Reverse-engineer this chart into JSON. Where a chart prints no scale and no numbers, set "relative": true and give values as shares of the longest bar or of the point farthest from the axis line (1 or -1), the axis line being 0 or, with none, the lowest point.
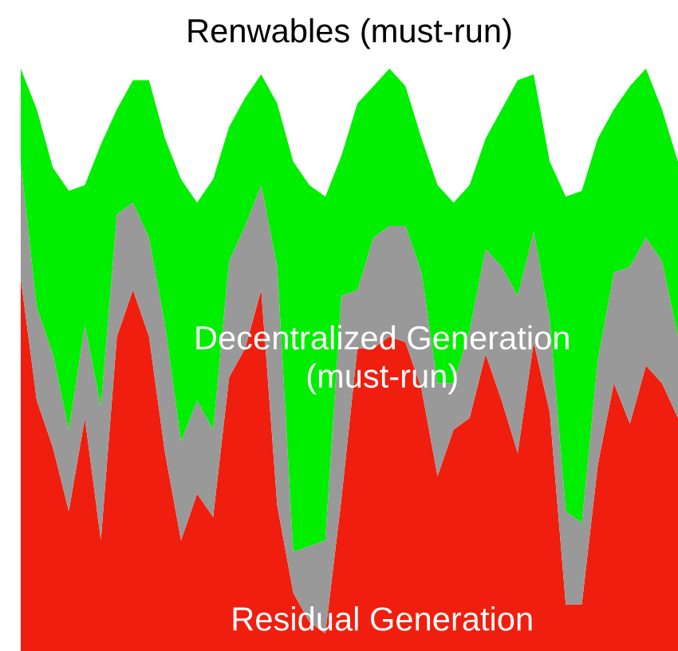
{
  "chart_data": {
    "type": "area",
    "stacked": true,
    "relative": true,
    "legend": false,
    "categories": [
      null,
      null,
      null,
      null,
      null,
      null,
      null,
      null,
      null,
      null,
      null,
      null,
      null,
      null,
      null,
      null,
      null,
      null,
      null,
      null,
      null,
      null,
      null,
      null,
      null,
      null,
      null,
      null,
      null,
      null,
      null,
      null,
      null,
      null,
      null,
      null,
      null,
      null,
      null,
      null,
      null,
      null
    ],
    "series": [
      {
        "name": "Residual Generation",
        "color": "#f01e0e",
        "values": [
          0.64,
          0.43,
          0.35,
          0.24,
          0.4,
          0.19,
          0.54,
          0.62,
          0.54,
          0.34,
          0.19,
          0.27,
          0.23,
          0.47,
          0.52,
          0.62,
          0.25,
          0.1,
          0.05,
          0.03,
          0.26,
          0.52,
          0.52,
          0.54,
          0.53,
          0.45,
          0.3,
          0.38,
          0.4,
          0.51,
          0.43,
          0.34,
          0.53,
          0.41,
          0.08,
          0.08,
          0.32,
          0.46,
          0.39,
          0.49,
          0.46,
          0.4
        ]
      },
      {
        "name": "Decentralized Generation\n(must-run)",
        "color": "#999999",
        "values": [
          0.2,
          0.16,
          0.16,
          0.14,
          0.16,
          0.23,
          0.21,
          0.15,
          0.17,
          0.22,
          0.17,
          0.16,
          0.15,
          0.2,
          0.21,
          0.18,
          0.41,
          0.07,
          0.13,
          0.16,
          0.35,
          0.1,
          0.19,
          0.19,
          0.2,
          0.2,
          0.16,
          0.08,
          0.15,
          0.18,
          0.23,
          0.27,
          0.19,
          0.16,
          0.16,
          0.14,
          0.18,
          0.19,
          0.27,
          0.22,
          0.21,
          0.14
        ]
      },
      {
        "name": "Renwables (must-run)",
        "color": "#00ee00",
        "values": [
          0.16,
          0.34,
          0.32,
          0.41,
          0.24,
          0.45,
          0.18,
          0.21,
          0.27,
          0.32,
          0.45,
          0.34,
          0.43,
          0.23,
          0.22,
          0.19,
          0.28,
          0.67,
          0.62,
          0.59,
          0.24,
          0.32,
          0.26,
          0.27,
          0.24,
          0.23,
          0.34,
          0.31,
          0.25,
          0.19,
          0.27,
          0.37,
          0.27,
          0.27,
          0.54,
          0.57,
          0.38,
          0.28,
          0.31,
          0.29,
          0.26,
          0.3
        ]
      }
    ]
  }
}
